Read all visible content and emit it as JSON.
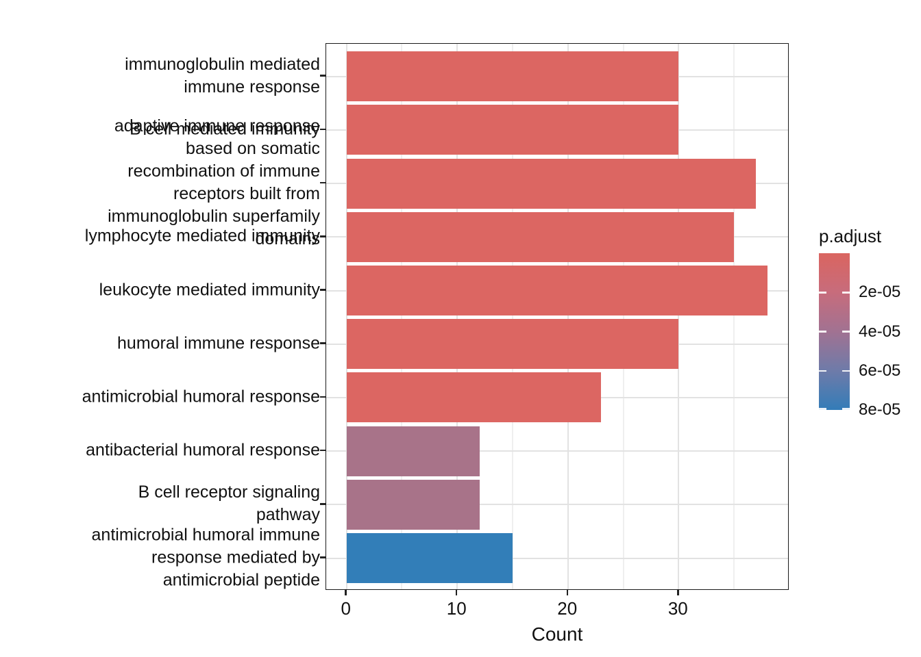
{
  "chart_data": {
    "type": "bar",
    "orientation": "horizontal",
    "title": "",
    "xlabel": "Count",
    "ylabel": "",
    "xlim": [
      -1.9,
      39.9
    ],
    "x_ticks": [
      0,
      10,
      20,
      30
    ],
    "x_tick_labels": [
      "0",
      "10",
      "20",
      "30"
    ],
    "x_minor_ticks": [
      5,
      15,
      25,
      35
    ],
    "grid": true,
    "legend_position": "right",
    "categories": [
      "immunoglobulin mediated immune response",
      "B cell mediated immunity",
      "adaptive immune response based on somatic recombination of immune receptors built from immunoglobulin superfamily domains",
      "lymphocyte mediated immunity",
      "leukocyte mediated immunity",
      "humoral immune response",
      "antimicrobial humoral response",
      "antibacterial humoral response",
      "B cell receptor signaling pathway",
      "antimicrobial humoral immune response mediated by antimicrobial peptide"
    ],
    "label_lines": [
      [
        "immunoglobulin mediated",
        "immune response"
      ],
      [
        "B cell mediated immunity"
      ],
      [
        "adaptive immune response",
        "based on somatic",
        "recombination of immune",
        "receptors built from",
        "immunoglobulin superfamily",
        "domains"
      ],
      [
        "lymphocyte mediated immunity"
      ],
      [
        "leukocyte mediated immunity"
      ],
      [
        "humoral immune response"
      ],
      [
        "antimicrobial humoral response"
      ],
      [
        "antibacterial humoral response"
      ],
      [
        "B cell receptor signaling",
        "pathway"
      ],
      [
        "antimicrobial humoral immune",
        "response mediated by",
        "antimicrobial peptide"
      ]
    ],
    "values": [
      30,
      30,
      37,
      35,
      38,
      30,
      23,
      12,
      12,
      15
    ],
    "bar_colors": [
      "#DC6662",
      "#DC6662",
      "#DC6662",
      "#DC6662",
      "#DC6662",
      "#DC6662",
      "#DC6662",
      "#A87389",
      "#A87389",
      "#327EB8"
    ],
    "legend": {
      "title": "p.adjust",
      "domain": [
        0,
        8e-05
      ],
      "tick_values": [
        2e-05,
        4e-05,
        6e-05,
        8e-05
      ],
      "tick_labels": [
        "2e-05",
        "4e-05",
        "6e-05",
        "8e-05"
      ],
      "gradient_stops": [
        {
          "pos": 0.0,
          "color": "#DA6560"
        },
        {
          "pos": 0.25,
          "color": "#C76C7C"
        },
        {
          "pos": 0.5,
          "color": "#A17292"
        },
        {
          "pos": 0.75,
          "color": "#6E7BA9"
        },
        {
          "pos": 1.0,
          "color": "#337CB8"
        }
      ]
    },
    "colors": {
      "grid_major": "#E2E2E2",
      "grid_minor": "#EFEFEF",
      "panel_border": "#1A1A1A",
      "tick_mark": "#222222",
      "text": "#111111",
      "background": "#FFFFFF"
    }
  }
}
